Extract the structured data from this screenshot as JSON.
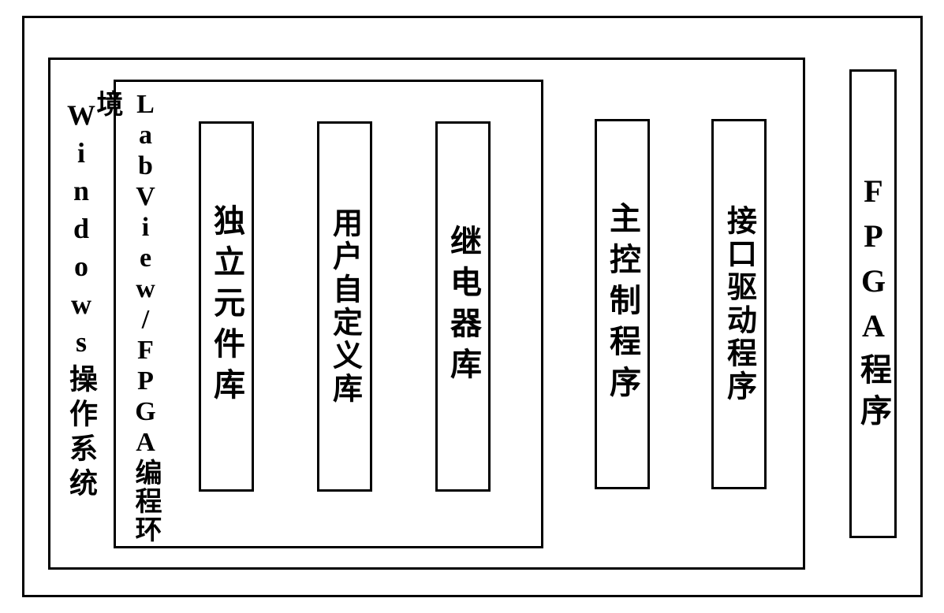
{
  "diagram": {
    "type": "block-diagram",
    "background_color": "#ffffff",
    "border_color": "#000000",
    "border_width": 3,
    "text_color": "#000000",
    "font_family": "SimSun",
    "font_weight": "bold",
    "outer_frame": {
      "fpga_program": {
        "label": "FPGA程序",
        "fontsize": 40
      },
      "windows_os": {
        "label": "Windows操作系统",
        "fontsize": 36,
        "labview_env": {
          "label": "LabView/FPGA编程环境",
          "fontsize": 34,
          "libraries": [
            {
              "label": "独立元件库",
              "fontsize": 40
            },
            {
              "label": "用户自定义库",
              "fontsize": 38
            },
            {
              "label": "继电器库",
              "fontsize": 40
            }
          ]
        },
        "programs": [
          {
            "label": "主控制程序",
            "fontsize": 40
          },
          {
            "label": "接口驱动程序",
            "fontsize": 38
          }
        ]
      }
    }
  }
}
